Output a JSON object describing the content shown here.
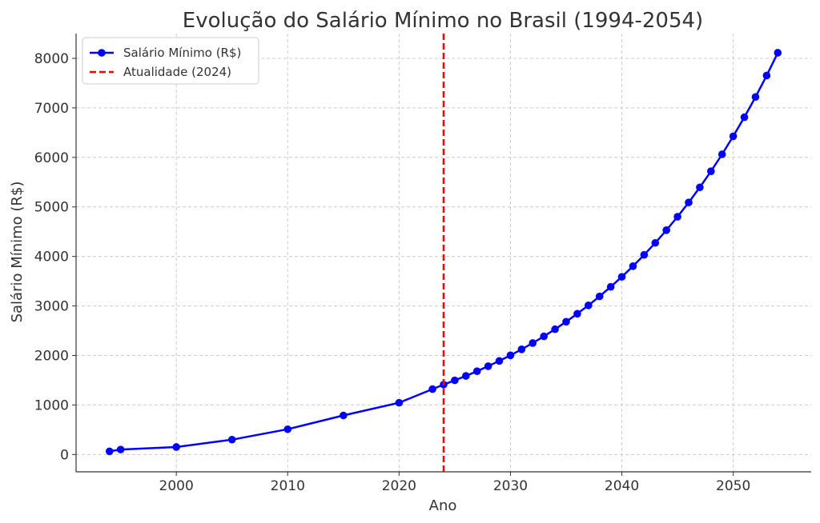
{
  "chart_data": {
    "type": "line",
    "title": "Evolução do Salário Mínimo no Brasil (1994-2054)",
    "xlabel": "Ano",
    "ylabel": "Salário Mínimo (R$)",
    "xlim": [
      1991,
      2057
    ],
    "ylim": [
      -350,
      8500
    ],
    "x_ticks": [
      2000,
      2010,
      2020,
      2030,
      2040,
      2050
    ],
    "y_ticks": [
      0,
      1000,
      2000,
      3000,
      4000,
      5000,
      6000,
      7000,
      8000
    ],
    "grid": true,
    "legend_position": "top-left",
    "series": [
      {
        "name": "Salário Mínimo (R$)",
        "color": "#0000ff",
        "marker": "circle",
        "x": [
          1994,
          1995,
          2000,
          2005,
          2010,
          2015,
          2020,
          2023,
          2024,
          2025,
          2026,
          2027,
          2028,
          2029,
          2030,
          2031,
          2032,
          2033,
          2034,
          2035,
          2036,
          2037,
          2038,
          2039,
          2040,
          2041,
          2042,
          2043,
          2044,
          2045,
          2046,
          2047,
          2048,
          2049,
          2050,
          2051,
          2052,
          2053,
          2054
        ],
        "y": [
          64,
          100,
          151,
          300,
          510,
          788,
          1045,
          1320,
          1412,
          1497,
          1587,
          1682,
          1783,
          1890,
          2003,
          2124,
          2251,
          2386,
          2529,
          2681,
          2842,
          3012,
          3193,
          3385,
          3588,
          3803,
          4031,
          4273,
          4530,
          4801,
          5090,
          5395,
          5719,
          6062,
          6426,
          6811,
          7220,
          7653,
          8113
        ]
      }
    ],
    "reference_lines": [
      {
        "name": "Atualidade (2024)",
        "x": 2024,
        "color": "#ff0000",
        "style": "dashed"
      }
    ]
  }
}
